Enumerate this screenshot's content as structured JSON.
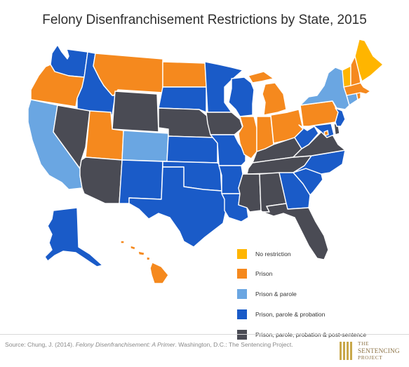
{
  "title": "Felony Disenfranchisement Restrictions by State, 2015",
  "colors": {
    "none": "#ffb500",
    "prison": "#f5891e",
    "parole": "#6aa6e2",
    "probation": "#1a5bc8",
    "post": "#4a4b54"
  },
  "legend": [
    {
      "key": "none",
      "label": "No restriction"
    },
    {
      "key": "prison",
      "label": "Prison"
    },
    {
      "key": "parole",
      "label": "Prison & parole"
    },
    {
      "key": "probation",
      "label": "Prison, parole & probation"
    },
    {
      "key": "post",
      "label": "Prison, parole, probation & post-sentence"
    }
  ],
  "states": {
    "WA": "probation",
    "OR": "prison",
    "CA": "parole",
    "ID": "probation",
    "NV": "post",
    "MT": "prison",
    "WY": "post",
    "UT": "prison",
    "AZ": "post",
    "CO": "parole",
    "NM": "probation",
    "ND": "prison",
    "SD": "probation",
    "NE": "post",
    "KS": "probation",
    "OK": "probation",
    "TX": "probation",
    "MN": "probation",
    "IA": "post",
    "MO": "probation",
    "AR": "probation",
    "LA": "probation",
    "WI": "probation",
    "IL": "prison",
    "MI": "prison",
    "IN": "prison",
    "OH": "prison",
    "KY": "post",
    "TN": "post",
    "MS": "post",
    "AL": "post",
    "GA": "probation",
    "FL": "post",
    "SC": "probation",
    "NC": "probation",
    "VA": "post",
    "WV": "probation",
    "MD": "probation",
    "DE": "post",
    "PA": "prison",
    "NY": "parole",
    "NJ": "probation",
    "CT": "parole",
    "RI": "prison",
    "MA": "prison",
    "VT": "none",
    "NH": "prison",
    "ME": "none",
    "AK": "probation",
    "HI": "prison",
    "DC": "prison"
  },
  "footer": {
    "source_prefix": "Source: Chung, J. (2014). ",
    "source_title": "Felony Disenfranchisement: A Primer",
    "source_suffix": ". Washington, D.C.: The Sentencing Project."
  },
  "logo": {
    "line1": "THE",
    "line2": "SENTENCING",
    "line3": "PROJECT"
  }
}
